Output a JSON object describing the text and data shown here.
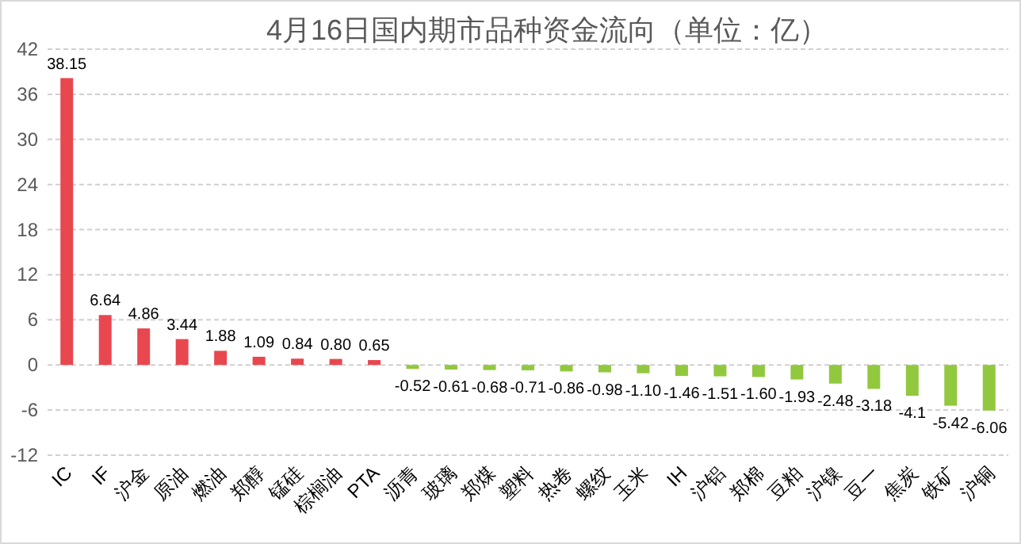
{
  "chart_data": {
    "type": "bar",
    "title": "4月16日国内期市品种资金流向（单位：亿）",
    "categories": [
      "IC",
      "IF",
      "沪金",
      "原油",
      "燃油",
      "郑醇",
      "锰硅",
      "棕榈油",
      "PTA",
      "沥青",
      "玻璃",
      "郑煤",
      "塑料",
      "热卷",
      "螺纹",
      "玉米",
      "IH",
      "沪铝",
      "郑棉",
      "豆粕",
      "沪镍",
      "豆一",
      "焦炭",
      "铁矿",
      "沪铜"
    ],
    "values": [
      38.15,
      6.64,
      4.86,
      3.44,
      1.88,
      1.09,
      0.84,
      0.8,
      0.65,
      -0.52,
      -0.61,
      -0.68,
      -0.71,
      -0.86,
      -0.98,
      -1.1,
      -1.46,
      -1.51,
      -1.6,
      -1.93,
      -2.48,
      -3.18,
      -4.1,
      -5.42,
      -6.06
    ],
    "value_labels": [
      "38.15",
      "6.64",
      "4.86",
      "3.44",
      "1.88",
      "1.09",
      "0.84",
      "0.80",
      "0.65",
      "-0.52",
      "-0.61",
      "-0.68",
      "-0.71",
      "-0.86",
      "-0.98",
      "-1.10",
      "-1.46",
      "-1.51",
      "-1.60",
      "-1.93",
      "-2.48",
      "-3.18",
      "-4.1",
      "-5.42",
      "-6.06"
    ],
    "colors": [
      "#e8474f",
      "#e8474f",
      "#e8474f",
      "#e8474f",
      "#e8474f",
      "#e8474f",
      "#e8474f",
      "#e8474f",
      "#e8474f",
      "#92c83e",
      "#92c83e",
      "#92c83e",
      "#92c83e",
      "#92c83e",
      "#92c83e",
      "#92c83e",
      "#92c83e",
      "#92c83e",
      "#92c83e",
      "#92c83e",
      "#92c83e",
      "#92c83e",
      "#92c83e",
      "#92c83e",
      "#92c83e"
    ],
    "ylim": [
      -12,
      42
    ],
    "yticks": [
      -12,
      -6,
      0,
      6,
      12,
      18,
      24,
      30,
      36,
      42
    ],
    "grid": "y"
  }
}
